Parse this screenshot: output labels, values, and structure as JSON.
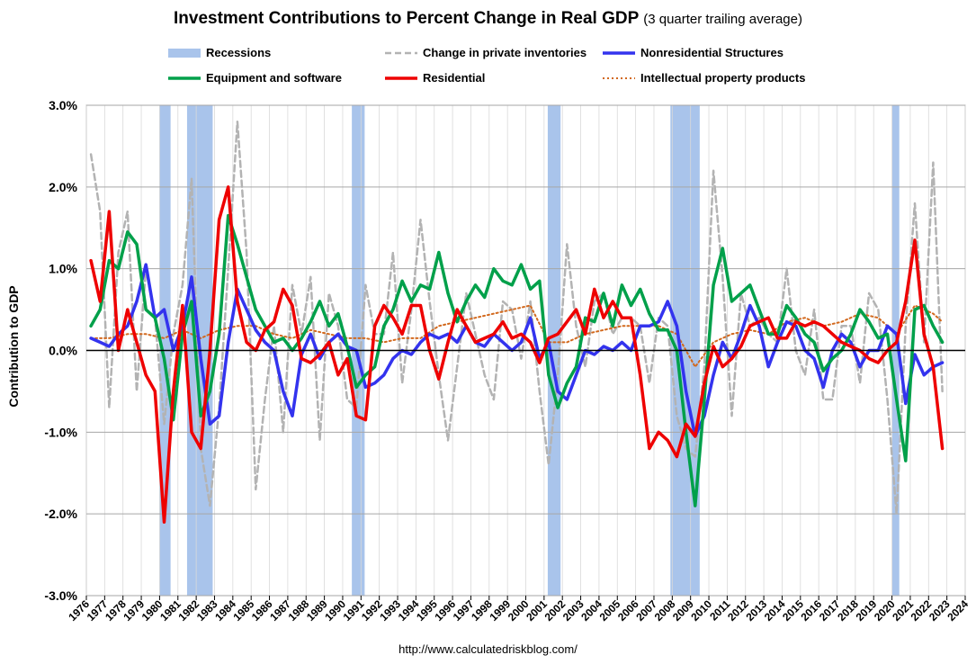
{
  "chart_data": {
    "type": "line",
    "title": "Investment Contributions to Percent Change in Real GDP",
    "subtitle": "(3 quarter trailing average)",
    "xlabel": "",
    "ylabel": "Contribution to GDP",
    "ylim": [
      -3,
      3
    ],
    "yticks": [
      "3.0%",
      "2.0%",
      "1.0%",
      "0.0%",
      "-1.0%",
      "-2.0%",
      "-3.0%"
    ],
    "xlim": [
      1976,
      2024
    ],
    "xticks": [
      "1976",
      "1977",
      "1978",
      "1979",
      "1980",
      "1981",
      "1982",
      "1983",
      "1984",
      "1985",
      "1986",
      "1987",
      "1988",
      "1989",
      "1990",
      "1991",
      "1992",
      "1993",
      "1994",
      "1995",
      "1996",
      "1997",
      "1998",
      "1999",
      "2000",
      "2001",
      "2002",
      "2003",
      "2004",
      "2005",
      "2006",
      "2007",
      "2008",
      "2009",
      "2010",
      "2011",
      "2012",
      "2013",
      "2014",
      "2015",
      "2016",
      "2017",
      "2018",
      "2019",
      "2020",
      "2021",
      "2022",
      "2023",
      "2024"
    ],
    "grid": true,
    "legend_position": "top",
    "recessions": [
      [
        1980.0,
        1980.6
      ],
      [
        1981.5,
        1982.9
      ],
      [
        1990.5,
        1991.2
      ],
      [
        2001.2,
        2001.9
      ],
      [
        2007.9,
        2009.5
      ],
      [
        2020.0,
        2020.4
      ]
    ],
    "series": [
      {
        "name": "Change in private inventories",
        "color": "#b3b3b3",
        "style": "dashed",
        "x": [
          1976.25,
          1976.75,
          1977.25,
          1977.75,
          1978.25,
          1978.75,
          1979.25,
          1979.75,
          1980.25,
          1980.75,
          1981.25,
          1981.75,
          1982.25,
          1982.75,
          1983.25,
          1983.75,
          1984.25,
          1984.75,
          1985.25,
          1985.75,
          1986.25,
          1986.75,
          1987.25,
          1987.75,
          1988.25,
          1988.75,
          1989.25,
          1989.75,
          1990.25,
          1990.75,
          1991.25,
          1991.75,
          1992.25,
          1992.75,
          1993.25,
          1993.75,
          1994.25,
          1994.75,
          1995.25,
          1995.75,
          1996.25,
          1996.75,
          1997.25,
          1997.75,
          1998.25,
          1998.75,
          1999.25,
          1999.75,
          2000.25,
          2000.75,
          2001.25,
          2001.75,
          2002.25,
          2002.75,
          2003.25,
          2003.75,
          2004.25,
          2004.75,
          2005.25,
          2005.75,
          2006.25,
          2006.75,
          2007.25,
          2007.75,
          2008.25,
          2008.75,
          2009.25,
          2009.75,
          2010.25,
          2010.75,
          2011.25,
          2011.75,
          2012.25,
          2012.75,
          2013.25,
          2013.75,
          2014.25,
          2014.75,
          2015.25,
          2015.75,
          2016.25,
          2016.75,
          2017.25,
          2017.75,
          2018.25,
          2018.75,
          2019.25,
          2019.75,
          2020.25,
          2020.75,
          2021.25,
          2021.75,
          2022.25,
          2022.75
        ],
        "values": [
          2.4,
          1.7,
          -0.7,
          1.2,
          1.7,
          -0.5,
          1.0,
          0.4,
          -0.9,
          0.2,
          0.8,
          2.1,
          -1.2,
          -1.9,
          -0.7,
          1.0,
          2.8,
          1.2,
          -1.7,
          -0.6,
          0.3,
          -1.0,
          0.8,
          0.2,
          0.9,
          -1.1,
          0.7,
          0.3,
          -0.6,
          -0.7,
          0.8,
          0.2,
          0.2,
          1.2,
          -0.4,
          0.5,
          1.6,
          0.6,
          -0.3,
          -1.1,
          -0.2,
          0.7,
          0.2,
          -0.3,
          -0.6,
          0.6,
          0.5,
          -0.1,
          0.6,
          -0.5,
          -1.4,
          -0.3,
          1.3,
          0.3,
          -0.2,
          0.6,
          0.7,
          0.2,
          0.4,
          0.4,
          0.3,
          -0.4,
          0.4,
          0.3,
          -0.8,
          -1.2,
          -1.3,
          -0.2,
          2.2,
          0.9,
          -0.8,
          0.7,
          0.3,
          0.4,
          0.2,
          0.1,
          1.0,
          0.0,
          -0.3,
          0.5,
          -0.6,
          -0.6,
          0.3,
          0.3,
          -0.4,
          0.7,
          0.5,
          -0.6,
          -2.0,
          0.3,
          1.8,
          0.1,
          2.3,
          -0.5
        ]
      },
      {
        "name": "Intellectual property products",
        "color": "#d2691e",
        "style": "dotted",
        "x": [
          1976.25,
          1977.25,
          1978.25,
          1979.25,
          1980.25,
          1981.25,
          1982.25,
          1983.25,
          1984.25,
          1985.25,
          1986.25,
          1987.25,
          1988.25,
          1989.25,
          1990.25,
          1991.25,
          1992.25,
          1993.25,
          1994.25,
          1995.25,
          1996.25,
          1997.25,
          1998.25,
          1999.25,
          2000.25,
          2001.25,
          2002.25,
          2003.25,
          2004.25,
          2005.25,
          2006.25,
          2007.25,
          2008.25,
          2009.25,
          2010.25,
          2011.25,
          2012.25,
          2013.25,
          2014.25,
          2015.25,
          2016.25,
          2017.25,
          2018.25,
          2019.25,
          2020.25,
          2021.25,
          2022.25,
          2022.75
        ],
        "values": [
          0.15,
          0.15,
          0.2,
          0.2,
          0.15,
          0.25,
          0.15,
          0.25,
          0.3,
          0.3,
          0.2,
          0.15,
          0.25,
          0.2,
          0.15,
          0.15,
          0.1,
          0.15,
          0.15,
          0.3,
          0.35,
          0.4,
          0.45,
          0.5,
          0.55,
          0.1,
          0.1,
          0.2,
          0.25,
          0.3,
          0.3,
          0.3,
          0.2,
          -0.2,
          0.1,
          0.2,
          0.25,
          0.2,
          0.35,
          0.4,
          0.3,
          0.35,
          0.45,
          0.4,
          0.2,
          0.55,
          0.45,
          0.35
        ]
      },
      {
        "name": "Nonresidential Structures",
        "color": "#3333ee",
        "style": "solid",
        "x": [
          1976.25,
          1976.75,
          1977.25,
          1977.75,
          1978.25,
          1978.75,
          1979.25,
          1979.75,
          1980.25,
          1980.75,
          1981.25,
          1981.75,
          1982.25,
          1982.75,
          1983.25,
          1983.75,
          1984.25,
          1984.75,
          1985.25,
          1985.75,
          1986.25,
          1986.75,
          1987.25,
          1987.75,
          1988.25,
          1988.75,
          1989.25,
          1989.75,
          1990.25,
          1990.75,
          1991.25,
          1991.75,
          1992.25,
          1992.75,
          1993.25,
          1993.75,
          1994.25,
          1994.75,
          1995.25,
          1995.75,
          1996.25,
          1996.75,
          1997.25,
          1997.75,
          1998.25,
          1998.75,
          1999.25,
          1999.75,
          2000.25,
          2000.75,
          2001.25,
          2001.75,
          2002.25,
          2002.75,
          2003.25,
          2003.75,
          2004.25,
          2004.75,
          2005.25,
          2005.75,
          2006.25,
          2006.75,
          2007.25,
          2007.75,
          2008.25,
          2008.75,
          2009.25,
          2009.75,
          2010.25,
          2010.75,
          2011.25,
          2011.75,
          2012.25,
          2012.75,
          2013.25,
          2013.75,
          2014.25,
          2014.75,
          2015.25,
          2015.75,
          2016.25,
          2016.75,
          2017.25,
          2017.75,
          2018.25,
          2018.75,
          2019.25,
          2019.75,
          2020.25,
          2020.75,
          2021.25,
          2021.75,
          2022.25,
          2022.75
        ],
        "values": [
          0.15,
          0.1,
          0.05,
          0.2,
          0.3,
          0.6,
          1.05,
          0.4,
          0.5,
          0.0,
          0.3,
          0.9,
          -0.1,
          -0.9,
          -0.8,
          0.1,
          0.75,
          0.5,
          0.25,
          0.1,
          0.0,
          -0.5,
          -0.8,
          -0.05,
          0.2,
          -0.1,
          0.1,
          0.2,
          0.05,
          0.0,
          -0.45,
          -0.4,
          -0.3,
          -0.1,
          0.0,
          -0.05,
          0.1,
          0.2,
          0.15,
          0.2,
          0.1,
          0.3,
          0.1,
          0.05,
          0.2,
          0.1,
          0.0,
          0.1,
          0.4,
          -0.1,
          0.1,
          -0.5,
          -0.6,
          -0.3,
          0.0,
          -0.05,
          0.05,
          0.0,
          0.1,
          0.0,
          0.3,
          0.3,
          0.35,
          0.6,
          0.3,
          -0.5,
          -1.05,
          -0.8,
          -0.3,
          0.1,
          -0.1,
          0.2,
          0.55,
          0.3,
          -0.2,
          0.1,
          0.35,
          0.3,
          0.0,
          -0.1,
          -0.45,
          0.0,
          0.2,
          0.1,
          -0.2,
          0.0,
          0.0,
          0.3,
          0.2,
          -0.65,
          -0.05,
          -0.3,
          -0.2,
          -0.15
        ]
      },
      {
        "name": "Equipment and software",
        "color": "#00a04a",
        "style": "solid",
        "x": [
          1976.25,
          1976.75,
          1977.25,
          1977.75,
          1978.25,
          1978.75,
          1979.25,
          1979.75,
          1980.25,
          1980.75,
          1981.25,
          1981.75,
          1982.25,
          1982.75,
          1983.25,
          1983.75,
          1984.25,
          1984.75,
          1985.25,
          1985.75,
          1986.25,
          1986.75,
          1987.25,
          1987.75,
          1988.25,
          1988.75,
          1989.25,
          1989.75,
          1990.25,
          1990.75,
          1991.25,
          1991.75,
          1992.25,
          1992.75,
          1993.25,
          1993.75,
          1994.25,
          1994.75,
          1995.25,
          1995.75,
          1996.25,
          1996.75,
          1997.25,
          1997.75,
          1998.25,
          1998.75,
          1999.25,
          1999.75,
          2000.25,
          2000.75,
          2001.25,
          2001.75,
          2002.25,
          2002.75,
          2003.25,
          2003.75,
          2004.25,
          2004.75,
          2005.25,
          2005.75,
          2006.25,
          2006.75,
          2007.25,
          2007.75,
          2008.25,
          2008.75,
          2009.25,
          2009.75,
          2010.25,
          2010.75,
          2011.25,
          2011.75,
          2012.25,
          2012.75,
          2013.25,
          2013.75,
          2014.25,
          2014.75,
          2015.25,
          2015.75,
          2016.25,
          2016.75,
          2017.25,
          2017.75,
          2018.25,
          2018.75,
          2019.25,
          2019.75,
          2020.25,
          2020.75,
          2021.25,
          2021.75,
          2022.25,
          2022.75
        ],
        "values": [
          0.3,
          0.5,
          1.1,
          1.0,
          1.45,
          1.3,
          0.5,
          0.4,
          -0.1,
          -0.85,
          0.2,
          0.6,
          -0.8,
          -0.5,
          0.2,
          1.65,
          1.3,
          0.9,
          0.5,
          0.3,
          0.1,
          0.15,
          0.0,
          0.15,
          0.35,
          0.6,
          0.3,
          0.45,
          0.05,
          -0.45,
          -0.3,
          -0.2,
          0.3,
          0.5,
          0.85,
          0.6,
          0.8,
          0.75,
          1.2,
          0.7,
          0.35,
          0.6,
          0.8,
          0.65,
          1.0,
          0.85,
          0.8,
          1.05,
          0.75,
          0.85,
          -0.3,
          -0.7,
          -0.4,
          -0.2,
          0.4,
          0.35,
          0.7,
          0.3,
          0.8,
          0.55,
          0.75,
          0.45,
          0.25,
          0.25,
          0.0,
          -1.0,
          -1.9,
          -0.6,
          0.8,
          1.25,
          0.6,
          0.7,
          0.8,
          0.5,
          0.2,
          0.2,
          0.55,
          0.4,
          0.2,
          0.1,
          -0.25,
          -0.1,
          0.0,
          0.2,
          0.5,
          0.35,
          0.15,
          0.2,
          -0.6,
          -1.35,
          0.5,
          0.55,
          0.3,
          0.1
        ]
      },
      {
        "name": "Residential",
        "color": "#ee0000",
        "style": "solid",
        "x": [
          1976.25,
          1976.75,
          1977.25,
          1977.75,
          1978.25,
          1978.75,
          1979.25,
          1979.75,
          1980.25,
          1980.75,
          1981.25,
          1981.75,
          1982.25,
          1982.75,
          1983.25,
          1983.75,
          1984.25,
          1984.75,
          1985.25,
          1985.75,
          1986.25,
          1986.75,
          1987.25,
          1987.75,
          1988.25,
          1988.75,
          1989.25,
          1989.75,
          1990.25,
          1990.75,
          1991.25,
          1991.75,
          1992.25,
          1992.75,
          1993.25,
          1993.75,
          1994.25,
          1994.75,
          1995.25,
          1995.75,
          1996.25,
          1996.75,
          1997.25,
          1997.75,
          1998.25,
          1998.75,
          1999.25,
          1999.75,
          2000.25,
          2000.75,
          2001.25,
          2001.75,
          2002.25,
          2002.75,
          2003.25,
          2003.75,
          2004.25,
          2004.75,
          2005.25,
          2005.75,
          2006.25,
          2006.75,
          2007.25,
          2007.75,
          2008.25,
          2008.75,
          2009.25,
          2009.75,
          2010.25,
          2010.75,
          2011.25,
          2011.75,
          2012.25,
          2012.75,
          2013.25,
          2013.75,
          2014.25,
          2014.75,
          2015.25,
          2015.75,
          2016.25,
          2016.75,
          2017.25,
          2017.75,
          2018.25,
          2018.75,
          2019.25,
          2019.75,
          2020.25,
          2020.75,
          2021.25,
          2021.75,
          2022.25,
          2022.75
        ],
        "values": [
          1.1,
          0.6,
          1.7,
          0.0,
          0.5,
          0.1,
          -0.3,
          -0.5,
          -2.1,
          -0.5,
          0.55,
          -1.0,
          -1.2,
          0.0,
          1.6,
          2.0,
          0.6,
          0.1,
          0.0,
          0.25,
          0.35,
          0.75,
          0.55,
          -0.1,
          -0.15,
          -0.05,
          0.1,
          -0.3,
          -0.1,
          -0.8,
          -0.85,
          0.3,
          0.55,
          0.4,
          0.2,
          0.55,
          0.55,
          0.0,
          -0.35,
          0.1,
          0.5,
          0.3,
          0.1,
          0.15,
          0.2,
          0.35,
          0.15,
          0.2,
          0.1,
          -0.15,
          0.15,
          0.2,
          0.35,
          0.5,
          0.2,
          0.75,
          0.4,
          0.6,
          0.4,
          0.4,
          -0.3,
          -1.2,
          -1.0,
          -1.1,
          -1.3,
          -0.9,
          -1.05,
          -0.4,
          0.05,
          -0.2,
          -0.1,
          0.05,
          0.3,
          0.35,
          0.4,
          0.15,
          0.15,
          0.35,
          0.3,
          0.35,
          0.3,
          0.2,
          0.1,
          0.05,
          0.0,
          -0.1,
          -0.15,
          0.0,
          0.1,
          0.6,
          1.35,
          0.2,
          -0.2,
          -1.2
        ]
      }
    ]
  },
  "legend": {
    "recessions": "Recessions",
    "inventories": "Change in private inventories",
    "structures": "Nonresidential Structures",
    "equipment": "Equipment and software",
    "residential": "Residential",
    "ipp": "Intellectual property products"
  },
  "source": "http://www.calculatedriskblog.com/",
  "colors": {
    "recession_fill": "#a9c4eb",
    "grid": "#a6a6a6",
    "zero_line": "#000000"
  }
}
